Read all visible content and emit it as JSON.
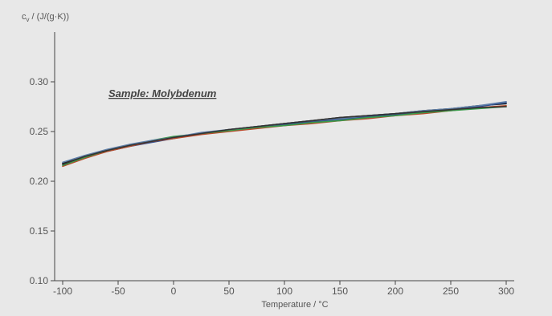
{
  "chart_data": {
    "type": "line",
    "title": "",
    "ylabel": "cv / (J/(g·K))",
    "ylabel_main": "c",
    "ylabel_sub": "v",
    "ylabel_rest": " / (J/(g·K))",
    "xlabel": "Temperature / °C",
    "xlim": [
      -100,
      300
    ],
    "ylim": [
      0.1,
      0.35
    ],
    "x_ticks": [
      -100,
      -50,
      0,
      50,
      100,
      150,
      200,
      250,
      300
    ],
    "y_ticks": [
      0.1,
      0.15,
      0.2,
      0.25,
      0.3
    ],
    "x_tick_labels": [
      "-100",
      "-50",
      "0",
      "50",
      "100",
      "150",
      "200",
      "250",
      "300"
    ],
    "y_tick_labels": [
      "0.10",
      "0.15",
      "0.20",
      "0.25",
      "0.30"
    ],
    "annotation": "Sample: Molybdenum",
    "grid": false,
    "series": [
      {
        "color": "#1a1a1a",
        "x": [
          -100,
          -80,
          -60,
          -40,
          -20,
          0,
          25,
          50,
          75,
          100,
          125,
          150,
          175,
          200,
          225,
          250,
          275,
          300
        ],
        "y": [
          0.218,
          0.225,
          0.231,
          0.236,
          0.24,
          0.244,
          0.248,
          0.252,
          0.255,
          0.258,
          0.261,
          0.264,
          0.266,
          0.268,
          0.271,
          0.273,
          0.276,
          0.278
        ]
      },
      {
        "color": "#2f4f8f",
        "x": [
          -100,
          -80,
          -60,
          -40,
          -20,
          0,
          25,
          50,
          75,
          100,
          125,
          150,
          175,
          200,
          225,
          250,
          275,
          300
        ],
        "y": [
          0.217,
          0.224,
          0.23,
          0.235,
          0.239,
          0.243,
          0.248,
          0.251,
          0.254,
          0.257,
          0.26,
          0.262,
          0.265,
          0.267,
          0.269,
          0.272,
          0.275,
          0.279
        ]
      },
      {
        "color": "#b84a2a",
        "x": [
          -100,
          -80,
          -60,
          -40,
          -20,
          0,
          25,
          50,
          75,
          100,
          125,
          150,
          175,
          200,
          225,
          250,
          275,
          300
        ],
        "y": [
          0.215,
          0.223,
          0.23,
          0.235,
          0.24,
          0.243,
          0.247,
          0.25,
          0.253,
          0.256,
          0.258,
          0.261,
          0.263,
          0.266,
          0.268,
          0.271,
          0.274,
          0.276
        ]
      },
      {
        "color": "#3a9a4a",
        "x": [
          -100,
          -80,
          -60,
          -40,
          -20,
          0,
          25,
          50,
          75,
          100,
          125,
          150,
          175,
          200,
          225,
          250,
          275,
          300
        ],
        "y": [
          0.216,
          0.224,
          0.231,
          0.236,
          0.241,
          0.245,
          0.248,
          0.251,
          0.254,
          0.256,
          0.259,
          0.261,
          0.264,
          0.266,
          0.269,
          0.271,
          0.273,
          0.275
        ]
      },
      {
        "color": "#5f7fa8",
        "x": [
          -100,
          -80,
          -60,
          -40,
          -20,
          0,
          25,
          50,
          75,
          100,
          125,
          150,
          175,
          200,
          225,
          250,
          275,
          300
        ],
        "y": [
          0.219,
          0.226,
          0.232,
          0.237,
          0.241,
          0.244,
          0.249,
          0.252,
          0.255,
          0.258,
          0.261,
          0.263,
          0.266,
          0.268,
          0.271,
          0.273,
          0.276,
          0.28
        ]
      },
      {
        "color": "#333333",
        "x": [
          -100,
          -80,
          -60,
          -40,
          -20,
          0,
          25,
          50,
          75,
          100,
          125,
          150,
          175,
          200,
          225,
          250,
          275,
          300
        ],
        "y": [
          0.217,
          0.225,
          0.231,
          0.236,
          0.24,
          0.244,
          0.248,
          0.252,
          0.255,
          0.258,
          0.261,
          0.264,
          0.266,
          0.268,
          0.27,
          0.272,
          0.274,
          0.275
        ]
      }
    ]
  }
}
